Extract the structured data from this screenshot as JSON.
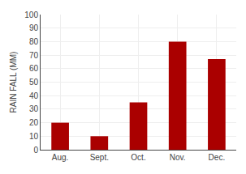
{
  "chart_data": {
    "type": "bar",
    "categories": [
      "Aug.",
      "Sept.",
      "Oct.",
      "Nov.",
      "Dec."
    ],
    "values": [
      20,
      10,
      35,
      80,
      67
    ],
    "color": "#aa0000",
    "ylabel": "RAIN FALL (MM)",
    "ylim": [
      0,
      100
    ],
    "yticks": [
      0,
      10,
      20,
      30,
      40,
      50,
      60,
      70,
      80,
      90,
      100
    ],
    "grid": true
  }
}
